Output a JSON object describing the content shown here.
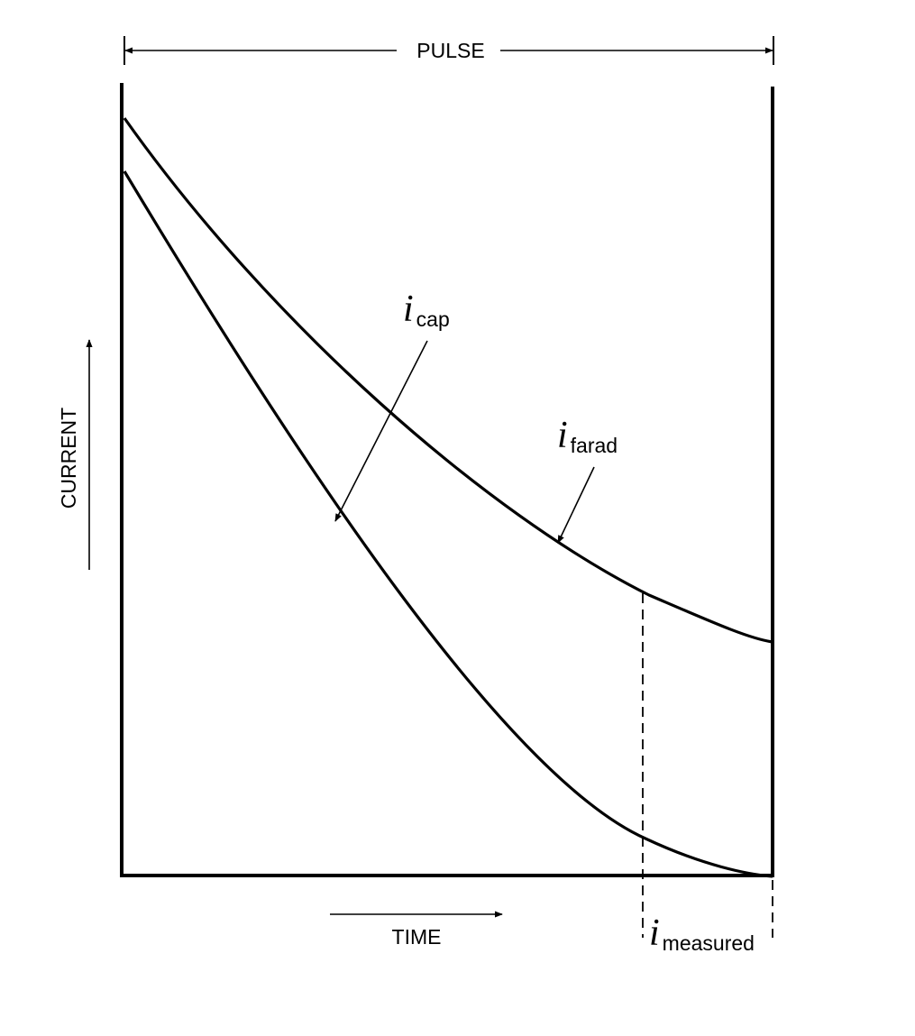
{
  "labels": {
    "pulse": "PULSE",
    "current": "CURRENT",
    "time": "TIME",
    "i_symbol": "i",
    "cap_sub": "cap",
    "farad_sub": "farad",
    "measured_sub": "measured"
  },
  "colors": {
    "ink": "#000000",
    "background": "#ffffff"
  }
}
